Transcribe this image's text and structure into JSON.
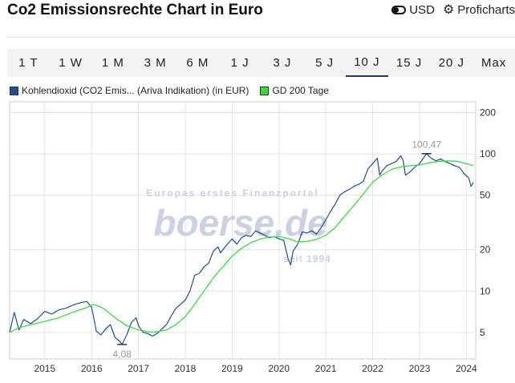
{
  "header": {
    "title": "Co2 Emissionsrechte Chart in Euro",
    "currency_label": "USD",
    "pro_label": "Proficharts",
    "toggle_icon": "toggle-icon",
    "gear_icon": "gear-icon"
  },
  "tabs": [
    {
      "label": "1 T"
    },
    {
      "label": "1 W"
    },
    {
      "label": "1 M"
    },
    {
      "label": "3 M"
    },
    {
      "label": "6 M"
    },
    {
      "label": "1 J"
    },
    {
      "label": "3 J"
    },
    {
      "label": "5 J"
    },
    {
      "label": "10 J",
      "active": true
    },
    {
      "label": "15 J"
    },
    {
      "label": "20 J"
    },
    {
      "label": "Max"
    }
  ],
  "legend": [
    {
      "label": "Kohlendioxid (CO2 Emis...  (Ariva Indikation) (in EUR)",
      "color": "#1c4f9c"
    },
    {
      "label": "GD 200 Tage",
      "color": "#33e233"
    }
  ],
  "watermark": {
    "line1": "Europas erstes Finanzportal",
    "line2": "boerse.de",
    "line3": "seit 1994"
  },
  "chart_data": {
    "type": "line",
    "scale": "log",
    "ylim": [
      3.2,
      240
    ],
    "xlim": [
      2014.25,
      2024.2
    ],
    "y_ticks": [
      5,
      10,
      20,
      50,
      100,
      200
    ],
    "x_ticks": [
      2015,
      2016,
      2017,
      2018,
      2019,
      2020,
      2021,
      2022,
      2023,
      2024
    ],
    "grid": true,
    "legend_position": "top-left",
    "annotations": [
      {
        "label": "100,47",
        "x": 2023.15,
        "y": 100.47,
        "kind": "max"
      },
      {
        "label": "4,08",
        "x": 2016.65,
        "y": 4.08,
        "kind": "min"
      }
    ],
    "series": [
      {
        "name": "Kohlendioxid (CO2 Emis...  (Ariva Indikation) (in EUR)",
        "color": "#1c4f9c",
        "points": [
          [
            2014.25,
            5.0
          ],
          [
            2014.35,
            7.0
          ],
          [
            2014.45,
            5.2
          ],
          [
            2014.55,
            6.2
          ],
          [
            2014.7,
            5.8
          ],
          [
            2014.85,
            6.3
          ],
          [
            2015.0,
            7.1
          ],
          [
            2015.15,
            6.8
          ],
          [
            2015.3,
            7.3
          ],
          [
            2015.45,
            7.5
          ],
          [
            2015.6,
            7.9
          ],
          [
            2015.75,
            8.2
          ],
          [
            2015.9,
            8.4
          ],
          [
            2016.0,
            7.6
          ],
          [
            2016.05,
            6.3
          ],
          [
            2016.1,
            5.1
          ],
          [
            2016.2,
            4.8
          ],
          [
            2016.3,
            5.3
          ],
          [
            2016.4,
            5.7
          ],
          [
            2016.5,
            4.6
          ],
          [
            2016.6,
            4.3
          ],
          [
            2016.65,
            4.08
          ],
          [
            2016.75,
            4.8
          ],
          [
            2016.85,
            5.9
          ],
          [
            2016.95,
            6.4
          ],
          [
            2017.0,
            5.6
          ],
          [
            2017.1,
            5.0
          ],
          [
            2017.2,
            4.9
          ],
          [
            2017.3,
            4.7
          ],
          [
            2017.4,
            4.9
          ],
          [
            2017.5,
            5.3
          ],
          [
            2017.6,
            5.7
          ],
          [
            2017.7,
            6.6
          ],
          [
            2017.8,
            7.5
          ],
          [
            2017.9,
            8.0
          ],
          [
            2018.0,
            8.6
          ],
          [
            2018.1,
            10.0
          ],
          [
            2018.2,
            13.0
          ],
          [
            2018.3,
            13.5
          ],
          [
            2018.4,
            15.0
          ],
          [
            2018.5,
            16.0
          ],
          [
            2018.6,
            19.5
          ],
          [
            2018.7,
            21.0
          ],
          [
            2018.75,
            19.0
          ],
          [
            2018.85,
            21.0
          ],
          [
            2018.95,
            23.0
          ],
          [
            2019.0,
            24.0
          ],
          [
            2019.1,
            22.0
          ],
          [
            2019.2,
            24.5
          ],
          [
            2019.3,
            25.5
          ],
          [
            2019.4,
            25.0
          ],
          [
            2019.5,
            27.5
          ],
          [
            2019.6,
            26.5
          ],
          [
            2019.7,
            25.5
          ],
          [
            2019.8,
            24.5
          ],
          [
            2019.9,
            25.0
          ],
          [
            2020.0,
            24.0
          ],
          [
            2020.1,
            23.5
          ],
          [
            2020.2,
            17.0
          ],
          [
            2020.25,
            15.5
          ],
          [
            2020.3,
            19.5
          ],
          [
            2020.4,
            22.0
          ],
          [
            2020.5,
            27.0
          ],
          [
            2020.6,
            26.5
          ],
          [
            2020.7,
            27.5
          ],
          [
            2020.8,
            26.0
          ],
          [
            2020.9,
            29.0
          ],
          [
            2021.0,
            33.0
          ],
          [
            2021.1,
            38.0
          ],
          [
            2021.2,
            43.0
          ],
          [
            2021.3,
            50.0
          ],
          [
            2021.4,
            53.0
          ],
          [
            2021.5,
            55.0
          ],
          [
            2021.6,
            58.0
          ],
          [
            2021.7,
            60.0
          ],
          [
            2021.8,
            63.0
          ],
          [
            2021.9,
            78.0
          ],
          [
            2022.0,
            85.0
          ],
          [
            2022.1,
            93.0
          ],
          [
            2022.15,
            70.0
          ],
          [
            2022.2,
            75.0
          ],
          [
            2022.3,
            82.0
          ],
          [
            2022.4,
            85.0
          ],
          [
            2022.5,
            88.0
          ],
          [
            2022.6,
            97.0
          ],
          [
            2022.65,
            90.0
          ],
          [
            2022.7,
            70.0
          ],
          [
            2022.8,
            74.0
          ],
          [
            2022.9,
            80.0
          ],
          [
            2023.0,
            85.0
          ],
          [
            2023.1,
            95.0
          ],
          [
            2023.15,
            100.47
          ],
          [
            2023.25,
            93.0
          ],
          [
            2023.35,
            89.0
          ],
          [
            2023.45,
            92.0
          ],
          [
            2023.55,
            88.0
          ],
          [
            2023.65,
            85.0
          ],
          [
            2023.75,
            82.0
          ],
          [
            2023.85,
            80.0
          ],
          [
            2023.95,
            72.0
          ],
          [
            2024.05,
            67.0
          ],
          [
            2024.1,
            58.0
          ],
          [
            2024.15,
            62.0
          ]
        ]
      },
      {
        "name": "GD 200 Tage",
        "color": "#33e233",
        "points": [
          [
            2014.25,
            5.0
          ],
          [
            2014.45,
            5.4
          ],
          [
            2014.7,
            5.7
          ],
          [
            2015.0,
            6.0
          ],
          [
            2015.3,
            6.4
          ],
          [
            2015.6,
            7.0
          ],
          [
            2015.9,
            7.6
          ],
          [
            2016.05,
            8.0
          ],
          [
            2016.25,
            7.5
          ],
          [
            2016.5,
            6.4
          ],
          [
            2016.75,
            5.6
          ],
          [
            2017.0,
            5.2
          ],
          [
            2017.3,
            5.0
          ],
          [
            2017.6,
            5.2
          ],
          [
            2017.8,
            5.7
          ],
          [
            2018.0,
            6.5
          ],
          [
            2018.2,
            8.0
          ],
          [
            2018.4,
            10.0
          ],
          [
            2018.6,
            12.5
          ],
          [
            2018.8,
            15.0
          ],
          [
            2019.0,
            18.0
          ],
          [
            2019.2,
            20.5
          ],
          [
            2019.4,
            22.5
          ],
          [
            2019.6,
            24.0
          ],
          [
            2019.8,
            24.8
          ],
          [
            2020.0,
            25.0
          ],
          [
            2020.2,
            24.2
          ],
          [
            2020.4,
            22.8
          ],
          [
            2020.6,
            23.0
          ],
          [
            2020.8,
            23.8
          ],
          [
            2021.0,
            25.5
          ],
          [
            2021.2,
            29.0
          ],
          [
            2021.4,
            35.0
          ],
          [
            2021.6,
            42.0
          ],
          [
            2021.8,
            51.0
          ],
          [
            2022.0,
            62.0
          ],
          [
            2022.2,
            70.0
          ],
          [
            2022.4,
            77.0
          ],
          [
            2022.6,
            80.5
          ],
          [
            2022.8,
            82.0
          ],
          [
            2023.0,
            83.0
          ],
          [
            2023.2,
            86.0
          ],
          [
            2023.4,
            88.0
          ],
          [
            2023.6,
            89.0
          ],
          [
            2023.8,
            88.5
          ],
          [
            2024.0,
            85.0
          ],
          [
            2024.15,
            82.0
          ]
        ]
      }
    ]
  }
}
